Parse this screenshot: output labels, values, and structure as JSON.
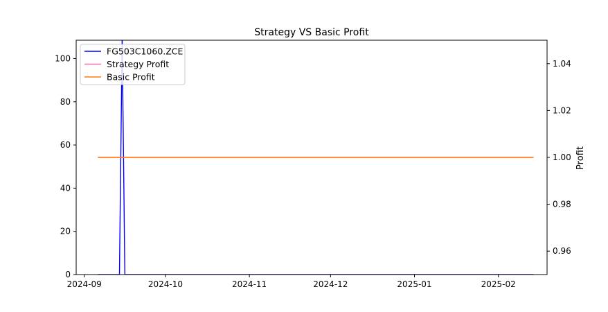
{
  "chart_data": {
    "type": "line",
    "title": "Strategy VS Basic Profit",
    "xlabel": "",
    "ylabel_left": "",
    "ylabel_right": "Profit",
    "x_ticks": [
      "2024-09",
      "2024-10",
      "2024-11",
      "2024-12",
      "2025-01",
      "2025-02"
    ],
    "x_tick_dates": [
      "2024-09-01",
      "2024-10-01",
      "2024-11-01",
      "2024-12-01",
      "2025-01-01",
      "2025-02-01"
    ],
    "xlim": [
      "2024-08-29",
      "2025-02-19"
    ],
    "y_left_ticks": [
      "0",
      "20",
      "40",
      "60",
      "80",
      "100"
    ],
    "y_left_tick_values": [
      0,
      20,
      40,
      60,
      80,
      100
    ],
    "ylim_left": [
      0,
      108.5
    ],
    "y_right_ticks": [
      "0.96",
      "0.98",
      "1.00",
      "1.02",
      "1.04"
    ],
    "y_right_tick_values": [
      0.96,
      0.98,
      1.0,
      1.02,
      1.04
    ],
    "ylim_right": [
      0.95,
      1.05
    ],
    "legend_position": "top-left",
    "series": [
      {
        "name": "FG503C1060.ZCE",
        "axis": "left",
        "color": "#0000ff",
        "x": [
          "2024-09-06",
          "2024-09-13",
          "2024-09-14",
          "2024-09-15",
          "2024-09-16",
          "2024-09-17",
          "2025-02-14"
        ],
        "y": [
          0,
          0,
          0,
          110,
          0,
          0,
          0
        ]
      },
      {
        "name": "Strategy Profit",
        "axis": "right",
        "color": "#ff69b4",
        "x": [
          "2024-09-06",
          "2025-02-14"
        ],
        "y": [
          1.0,
          1.0
        ]
      },
      {
        "name": "Basic Profit",
        "axis": "right",
        "color": "#ff7f0e",
        "x": [
          "2024-09-06",
          "2025-02-14"
        ],
        "y": [
          1.0,
          1.0
        ]
      }
    ]
  }
}
